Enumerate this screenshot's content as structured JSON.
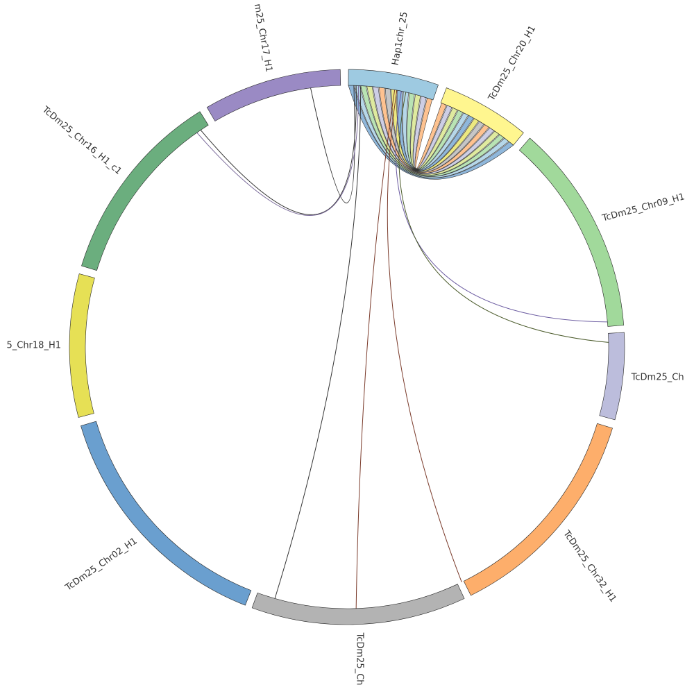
{
  "diagram": {
    "type": "chord",
    "segments": [
      {
        "id": "hap1",
        "label": "Hap1chr_25",
        "color": "#9ecae1"
      },
      {
        "id": "chr20",
        "label": "TcDm25_Chr20_H1",
        "color": "#fff68f"
      },
      {
        "id": "chr09",
        "label": "TcDm25_Chr09_H1",
        "color": "#a1d99b"
      },
      {
        "id": "chrX",
        "label": "TcDm25_Ch",
        "color": "#bcbddc"
      },
      {
        "id": "chr32",
        "label": "TcDm25_Chr32_H1",
        "color": "#fdae6b"
      },
      {
        "id": "chrB",
        "label": "TcDm25_Ch",
        "color": "#b3b3b3"
      },
      {
        "id": "chr02",
        "label": "TcDm25_Chr02_H1",
        "color": "#6a9fcf"
      },
      {
        "id": "chr18",
        "label": "5_Chr18_H1",
        "color": "#e6e055"
      },
      {
        "id": "chr16",
        "label": "TcDm25_Chr16_H1_c1",
        "color": "#6bae7e"
      },
      {
        "id": "chr17",
        "label": "m25_Chr17_H1",
        "color": "#9a8ac4"
      }
    ],
    "link_colors": [
      "#6a9fcf",
      "#9ecae1",
      "#a1d99b",
      "#d4e37f",
      "#bcbddc",
      "#fdae6b",
      "#b3b3b3",
      "#e6e055"
    ]
  }
}
